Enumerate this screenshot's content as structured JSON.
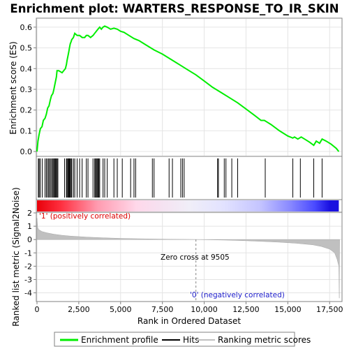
{
  "chart_data": {
    "type": "line",
    "title": "Enrichment plot: WARTERS_RESPONSE_TO_IR_SKIN",
    "xlabel": "Rank in Ordered Dataset",
    "es_ylabel": "Enrichment score (ES)",
    "metric_ylabel": "Ranked list metric (Signal2Noise)",
    "xlim": [
      0,
      18200
    ],
    "x_ticks": [
      "0",
      "2,500",
      "5,000",
      "7,500",
      "10,000",
      "12,500",
      "15,000",
      "17,500"
    ],
    "x_tick_values": [
      0,
      2500,
      5000,
      7500,
      10000,
      12500,
      15000,
      17500
    ],
    "es_ylim": [
      -0.02,
      0.64
    ],
    "es_y_ticks": [
      "0.0",
      "0.1",
      "0.2",
      "0.3",
      "0.4",
      "0.5",
      "0.6"
    ],
    "es_y_tick_values": [
      0,
      0.1,
      0.2,
      0.3,
      0.4,
      0.5,
      0.6
    ],
    "metric_ylim": [
      -4.6,
      2.0
    ],
    "metric_y_ticks": [
      "2",
      "1",
      "0",
      "-1",
      "-2",
      "-3",
      "-4"
    ],
    "metric_y_tick_values": [
      2,
      1,
      0,
      -1,
      -2,
      -3,
      -4
    ],
    "positive_label": "'1' (positively correlated)",
    "negative_label": "'0' (negatively correlated)",
    "zero_cross_label": "Zero cross at 9505",
    "zero_cross": 9505,
    "series": [
      {
        "name": "Enrichment profile",
        "color": "#00ee00",
        "points": [
          [
            0,
            0.0
          ],
          [
            60,
            0.05
          ],
          [
            120,
            0.08
          ],
          [
            200,
            0.11
          ],
          [
            300,
            0.12
          ],
          [
            380,
            0.15
          ],
          [
            480,
            0.16
          ],
          [
            560,
            0.18
          ],
          [
            640,
            0.21
          ],
          [
            720,
            0.22
          ],
          [
            800,
            0.25
          ],
          [
            870,
            0.27
          ],
          [
            950,
            0.28
          ],
          [
            1010,
            0.3
          ],
          [
            1060,
            0.32
          ],
          [
            1110,
            0.34
          ],
          [
            1160,
            0.36
          ],
          [
            1200,
            0.39
          ],
          [
            1300,
            0.39
          ],
          [
            1500,
            0.38
          ],
          [
            1600,
            0.39
          ],
          [
            1700,
            0.4
          ],
          [
            1760,
            0.42
          ],
          [
            1800,
            0.44
          ],
          [
            1850,
            0.46
          ],
          [
            1900,
            0.48
          ],
          [
            1940,
            0.5
          ],
          [
            1990,
            0.52
          ],
          [
            2040,
            0.53
          ],
          [
            2080,
            0.54
          ],
          [
            2180,
            0.55
          ],
          [
            2260,
            0.57
          ],
          [
            2400,
            0.56
          ],
          [
            2550,
            0.56
          ],
          [
            2700,
            0.55
          ],
          [
            2850,
            0.55
          ],
          [
            2950,
            0.56
          ],
          [
            3050,
            0.56
          ],
          [
            3200,
            0.55
          ],
          [
            3350,
            0.56
          ],
          [
            3450,
            0.57
          ],
          [
            3550,
            0.58
          ],
          [
            3650,
            0.59
          ],
          [
            3750,
            0.6
          ],
          [
            3850,
            0.59
          ],
          [
            3950,
            0.6
          ],
          [
            4050,
            0.605
          ],
          [
            4200,
            0.6
          ],
          [
            4400,
            0.59
          ],
          [
            4600,
            0.595
          ],
          [
            4800,
            0.59
          ],
          [
            5000,
            0.58
          ],
          [
            5200,
            0.575
          ],
          [
            5500,
            0.56
          ],
          [
            5800,
            0.545
          ],
          [
            6100,
            0.535
          ],
          [
            6500,
            0.515
          ],
          [
            7000,
            0.49
          ],
          [
            7500,
            0.47
          ],
          [
            8000,
            0.445
          ],
          [
            8500,
            0.42
          ],
          [
            9000,
            0.395
          ],
          [
            9500,
            0.37
          ],
          [
            10000,
            0.34
          ],
          [
            10500,
            0.31
          ],
          [
            11000,
            0.285
          ],
          [
            11500,
            0.26
          ],
          [
            12000,
            0.235
          ],
          [
            12500,
            0.205
          ],
          [
            13000,
            0.175
          ],
          [
            13400,
            0.15
          ],
          [
            13600,
            0.15
          ],
          [
            14000,
            0.13
          ],
          [
            14500,
            0.1
          ],
          [
            15000,
            0.075
          ],
          [
            15300,
            0.065
          ],
          [
            15400,
            0.07
          ],
          [
            15600,
            0.06
          ],
          [
            15800,
            0.07
          ],
          [
            16000,
            0.06
          ],
          [
            16300,
            0.045
          ],
          [
            16550,
            0.03
          ],
          [
            16700,
            0.05
          ],
          [
            16900,
            0.04
          ],
          [
            17050,
            0.06
          ],
          [
            17300,
            0.05
          ],
          [
            17600,
            0.035
          ],
          [
            17900,
            0.015
          ],
          [
            18050,
            0.0
          ]
        ]
      },
      {
        "name": "Hits",
        "color": "#000000",
        "positions": [
          80,
          130,
          200,
          320,
          480,
          560,
          630,
          700,
          760,
          830,
          900,
          960,
          1010,
          1060,
          1110,
          1160,
          1200,
          1250,
          1650,
          1760,
          1800,
          1850,
          1900,
          1940,
          1990,
          2040,
          2080,
          2180,
          2260,
          2400,
          2550,
          2700,
          2950,
          3050,
          3350,
          3450,
          3500,
          3550,
          3600,
          3650,
          3700,
          3750,
          3950,
          4050,
          4200,
          4600,
          4800,
          5100,
          5600,
          5800,
          5900,
          6900,
          7000,
          7900,
          8100,
          8600,
          8700,
          8800,
          10800,
          10850,
          11200,
          11300,
          11650,
          12000,
          13650,
          15300,
          15750,
          16550,
          17050
        ]
      },
      {
        "name": "Ranking metric scores",
        "color": "#c0c0c0",
        "points": [
          [
            0,
            1.6
          ],
          [
            40,
            0.9
          ],
          [
            100,
            0.75
          ],
          [
            300,
            0.6
          ],
          [
            600,
            0.5
          ],
          [
            1000,
            0.4
          ],
          [
            1500,
            0.32
          ],
          [
            2000,
            0.26
          ],
          [
            3000,
            0.18
          ],
          [
            4000,
            0.13
          ],
          [
            5000,
            0.09
          ],
          [
            6000,
            0.06
          ],
          [
            7000,
            0.04
          ],
          [
            8000,
            0.02
          ],
          [
            9000,
            0.01
          ],
          [
            9505,
            0.0
          ],
          [
            10500,
            -0.02
          ],
          [
            11500,
            -0.05
          ],
          [
            12500,
            -0.09
          ],
          [
            13500,
            -0.14
          ],
          [
            14500,
            -0.2
          ],
          [
            15500,
            -0.28
          ],
          [
            16500,
            -0.4
          ],
          [
            17000,
            -0.52
          ],
          [
            17500,
            -0.72
          ],
          [
            17800,
            -1.0
          ],
          [
            17950,
            -1.5
          ],
          [
            18050,
            -2.0
          ],
          [
            18080,
            -4.4
          ],
          [
            18100,
            0.0
          ]
        ]
      }
    ]
  },
  "legend": {
    "items": [
      {
        "label": "Enrichment profile",
        "color": "#00ee00"
      },
      {
        "label": "Hits",
        "color": "#000000"
      },
      {
        "label": "Ranking metric scores",
        "color": "#c0c0c0"
      }
    ]
  }
}
